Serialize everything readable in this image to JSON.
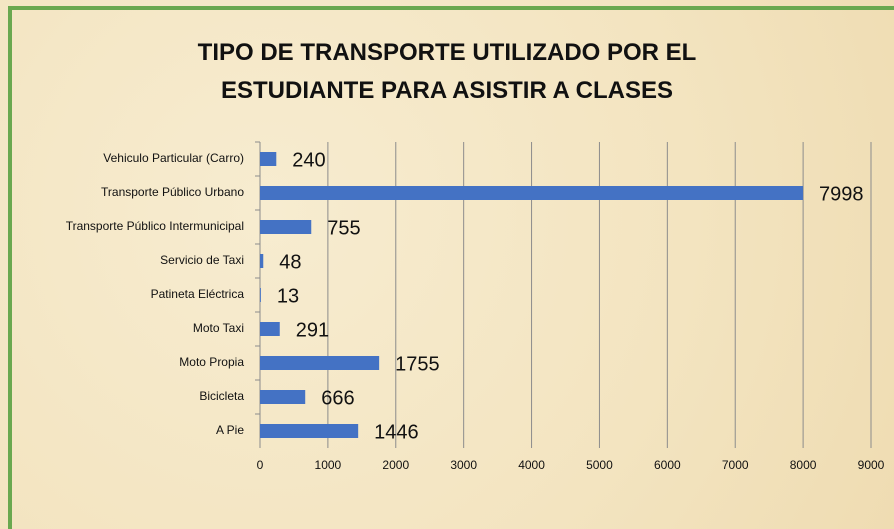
{
  "chart_data": {
    "type": "bar",
    "orientation": "horizontal",
    "title": "TIPO DE TRANSPORTE UTILIZADO POR EL ESTUDIANTE PARA ASISTIR A CLASES",
    "categories": [
      "Vehiculo Particular (Carro)",
      "Transporte Público Urbano",
      "Transporte Público Intermunicipal",
      "Servicio de Taxi",
      "Patineta Eléctrica",
      "Moto Taxi",
      "Moto Propia",
      "Bicicleta",
      "A Pie"
    ],
    "values": [
      240,
      7998,
      755,
      48,
      13,
      291,
      1755,
      666,
      1446
    ],
    "color": "#4472c4",
    "xlim": [
      0,
      9000
    ],
    "xticks": [
      0,
      1000,
      2000,
      3000,
      4000,
      5000,
      6000,
      7000,
      8000,
      9000
    ],
    "grid": true
  }
}
